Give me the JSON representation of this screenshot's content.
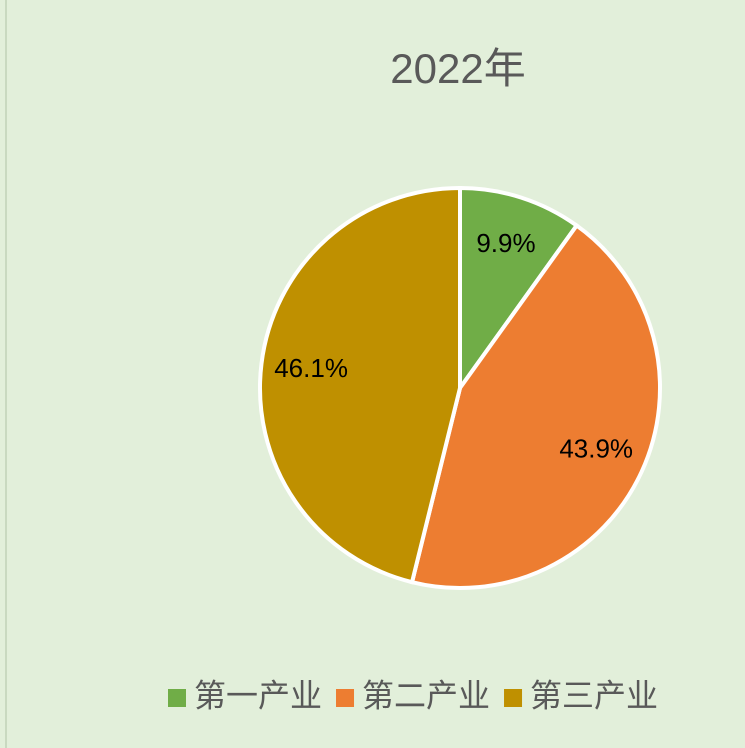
{
  "chart_data": {
    "type": "pie",
    "title": "2022年",
    "categories": [
      "第一产业",
      "第二产业",
      "第三产业"
    ],
    "values": [
      9.9,
      43.9,
      46.1
    ],
    "value_labels": [
      "9.9%",
      "43.9%",
      "46.1%"
    ],
    "colors": [
      "#70ad47",
      "#ed7d31",
      "#bf9000"
    ],
    "legend": "bottom"
  }
}
